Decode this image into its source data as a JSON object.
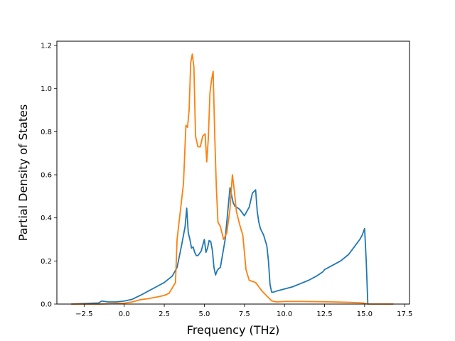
{
  "chart_data": {
    "type": "line",
    "xlabel": "Frequency (THz)",
    "ylabel": "Partial Density of States",
    "xlim": [
      -4.2,
      17.8
    ],
    "ylim": [
      0,
      1.22
    ],
    "xticks": [
      -2.5,
      0.0,
      2.5,
      5.0,
      7.5,
      10.0,
      12.5,
      15.0,
      17.5
    ],
    "xtick_labels": [
      "−2.5",
      "0.0",
      "2.5",
      "5.0",
      "7.5",
      "10.0",
      "12.5",
      "15.0",
      "17.5"
    ],
    "yticks": [
      0.0,
      0.2,
      0.4,
      0.6,
      0.8,
      1.0,
      1.2
    ],
    "ytick_labels": [
      "0.0",
      "0.2",
      "0.4",
      "0.6",
      "0.8",
      "1.0",
      "1.2"
    ],
    "grid": false,
    "legend": "none",
    "series": [
      {
        "color": "#1f77b4",
        "x": [
          -3.3,
          -1.6,
          -1.4,
          -1.2,
          -1.0,
          -0.5,
          0.0,
          0.5,
          1.0,
          1.5,
          2.0,
          2.5,
          3.0,
          3.3,
          3.6,
          3.8,
          3.9,
          4.0,
          4.1,
          4.2,
          4.3,
          4.4,
          4.5,
          4.6,
          4.7,
          4.8,
          5.0,
          5.1,
          5.2,
          5.3,
          5.4,
          5.5,
          5.6,
          5.7,
          5.8,
          5.9,
          6.0,
          6.3,
          6.6,
          6.8,
          6.9,
          7.0,
          7.2,
          7.5,
          7.8,
          8.0,
          8.2,
          8.3,
          8.4,
          8.5,
          8.7,
          8.9,
          9.0,
          9.1,
          9.2,
          9.3,
          9.5,
          10.0,
          10.5,
          11.0,
          11.5,
          12.0,
          12.4,
          12.5,
          13.0,
          13.5,
          14.0,
          14.5,
          14.7,
          14.85,
          15.0,
          15.1,
          15.2
        ],
        "y": [
          0.0,
          0.005,
          0.014,
          0.012,
          0.01,
          0.01,
          0.014,
          0.022,
          0.04,
          0.06,
          0.08,
          0.1,
          0.13,
          0.17,
          0.28,
          0.36,
          0.445,
          0.33,
          0.3,
          0.26,
          0.265,
          0.24,
          0.225,
          0.225,
          0.235,
          0.245,
          0.3,
          0.24,
          0.26,
          0.295,
          0.29,
          0.25,
          0.17,
          0.135,
          0.155,
          0.165,
          0.17,
          0.3,
          0.54,
          0.47,
          0.455,
          0.45,
          0.44,
          0.41,
          0.45,
          0.515,
          0.53,
          0.43,
          0.38,
          0.35,
          0.32,
          0.27,
          0.2,
          0.09,
          0.055,
          0.055,
          0.06,
          0.07,
          0.08,
          0.095,
          0.11,
          0.13,
          0.15,
          0.16,
          0.18,
          0.2,
          0.23,
          0.28,
          0.3,
          0.32,
          0.35,
          0.2,
          0.0
        ]
      },
      {
        "color": "#ff7f0e",
        "x": [
          -3.3,
          -1.5,
          -1.0,
          0.0,
          0.5,
          1.0,
          1.5,
          2.0,
          2.5,
          2.8,
          3.0,
          3.2,
          3.3,
          3.5,
          3.7,
          3.85,
          3.95,
          4.05,
          4.15,
          4.25,
          4.35,
          4.45,
          4.6,
          4.75,
          4.9,
          5.05,
          5.15,
          5.25,
          5.35,
          5.45,
          5.55,
          5.65,
          5.75,
          5.85,
          6.0,
          6.1,
          6.2,
          6.4,
          6.6,
          6.7,
          6.75,
          6.85,
          7.0,
          7.2,
          7.4,
          7.6,
          7.8,
          8.0,
          8.2,
          8.4,
          8.6,
          8.8,
          9.0,
          9.2,
          9.5,
          10.0,
          11.0,
          12.0,
          13.0,
          14.0,
          14.9,
          15.2,
          16.0,
          16.8
        ],
        "y": [
          0.0,
          0.0,
          0.001,
          0.004,
          0.01,
          0.02,
          0.025,
          0.032,
          0.04,
          0.05,
          0.075,
          0.1,
          0.3,
          0.43,
          0.56,
          0.83,
          0.82,
          0.9,
          1.12,
          1.16,
          1.1,
          0.78,
          0.73,
          0.73,
          0.78,
          0.79,
          0.66,
          0.77,
          0.98,
          1.04,
          1.08,
          0.78,
          0.54,
          0.38,
          0.36,
          0.33,
          0.3,
          0.33,
          0.44,
          0.55,
          0.6,
          0.54,
          0.43,
          0.37,
          0.32,
          0.16,
          0.11,
          0.105,
          0.1,
          0.08,
          0.06,
          0.045,
          0.03,
          0.015,
          0.01,
          0.012,
          0.012,
          0.011,
          0.01,
          0.008,
          0.005,
          0.0,
          0.0,
          0.0
        ]
      }
    ]
  }
}
